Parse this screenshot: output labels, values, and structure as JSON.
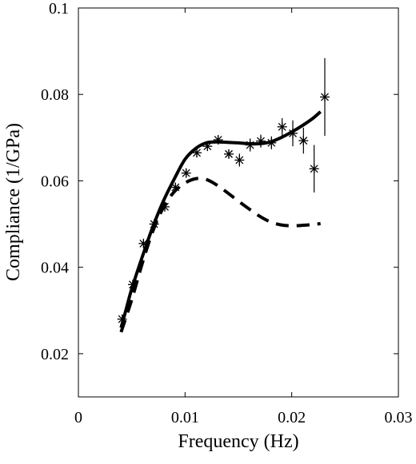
{
  "chart_data": {
    "type": "line",
    "title": "",
    "xlabel": "Frequency (Hz)",
    "ylabel": "Compliance (1/GPa)",
    "xlim": [
      0,
      0.03
    ],
    "ylim": [
      0.01,
      0.1
    ],
    "x_ticks": [
      0,
      0.01,
      0.02,
      0.03
    ],
    "x_tick_labels": [
      "0",
      "0.01",
      "0.02",
      "0.03"
    ],
    "y_ticks": [
      0.02,
      0.04,
      0.06,
      0.08,
      0.1
    ],
    "y_tick_labels": [
      "0.02",
      "0.04",
      "0.06",
      "0.08",
      "0.1"
    ],
    "grid": false,
    "legend": "none",
    "series": [
      {
        "style": "solid",
        "color": "#000000",
        "x": [
          0.004,
          0.0045,
          0.005,
          0.006,
          0.007,
          0.008,
          0.009,
          0.01,
          0.011,
          0.012,
          0.013,
          0.014,
          0.015,
          0.016,
          0.017,
          0.018,
          0.019,
          0.02,
          0.021,
          0.022,
          0.0227
        ],
        "y": [
          0.026,
          0.0305,
          0.035,
          0.0425,
          0.0495,
          0.0555,
          0.0605,
          0.065,
          0.0675,
          0.0688,
          0.069,
          0.0689,
          0.0688,
          0.0686,
          0.0686,
          0.069,
          0.07,
          0.0713,
          0.0728,
          0.0745,
          0.076
        ]
      },
      {
        "style": "dashed",
        "color": "#000000",
        "x": [
          0.004,
          0.005,
          0.006,
          0.007,
          0.008,
          0.009,
          0.01,
          0.011,
          0.012,
          0.013,
          0.014,
          0.015,
          0.016,
          0.017,
          0.018,
          0.019,
          0.02,
          0.021,
          0.022,
          0.0227
        ],
        "y": [
          0.025,
          0.0325,
          0.041,
          0.0485,
          0.054,
          0.0575,
          0.0595,
          0.0605,
          0.0603,
          0.059,
          0.0572,
          0.0553,
          0.0535,
          0.0518,
          0.0505,
          0.0498,
          0.0496,
          0.0497,
          0.0499,
          0.0501
        ]
      },
      {
        "style": "markers",
        "marker": "asterisk",
        "color": "#000000",
        "x": [
          0.0041,
          0.0051,
          0.0061,
          0.0071,
          0.0081,
          0.0091,
          0.0101,
          0.0111,
          0.0121,
          0.0131,
          0.0141,
          0.0151,
          0.0161,
          0.0171,
          0.0181,
          0.0191,
          0.0201,
          0.0211,
          0.0221,
          0.0231
        ],
        "y": [
          0.028,
          0.036,
          0.0455,
          0.05,
          0.054,
          0.0585,
          0.0618,
          0.0665,
          0.068,
          0.0695,
          0.0662,
          0.0648,
          0.0683,
          0.0692,
          0.0688,
          0.0725,
          0.071,
          0.0693,
          0.0628,
          0.0794
        ],
        "error": [
          0.001,
          0.001,
          0.0008,
          0.0008,
          0.0008,
          0.001,
          0.001,
          0.001,
          0.001,
          0.001,
          0.001,
          0.0015,
          0.0015,
          0.0015,
          0.0015,
          0.002,
          0.003,
          0.003,
          0.0055,
          0.009
        ]
      }
    ]
  }
}
